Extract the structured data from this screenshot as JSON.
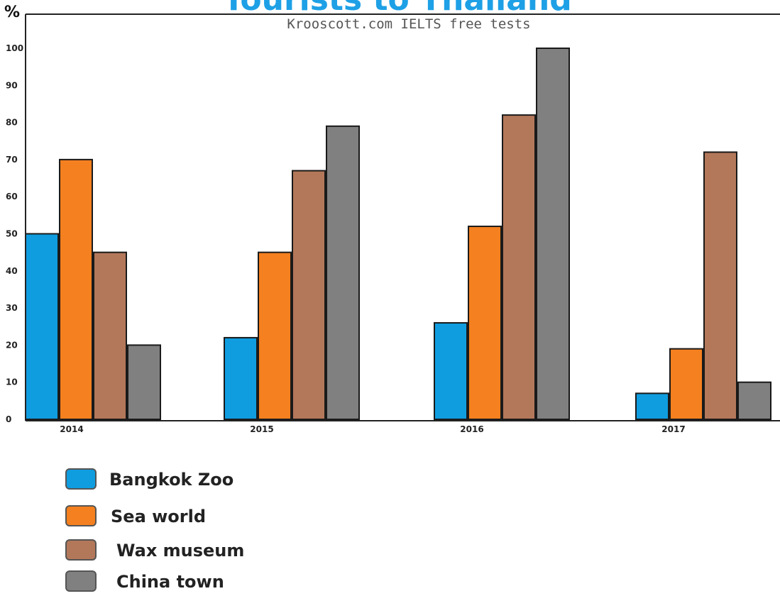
{
  "chart_data": {
    "type": "bar",
    "title": "Tourists to Thailand",
    "subtitle": "Krooscott.com IELTS free tests",
    "ylabel": "%",
    "ylim": [
      0,
      100
    ],
    "yticks": [
      "0",
      "10",
      "20",
      "30",
      "40",
      "50",
      "60",
      "70",
      "80",
      "90",
      "100"
    ],
    "categories": [
      "2014",
      "2015",
      "2016",
      "2017"
    ],
    "series": [
      {
        "name": "Bangkok Zoo",
        "color": "#0f9de0",
        "values": [
          50,
          22,
          26,
          7
        ]
      },
      {
        "name": "Sea world",
        "color": "#f5801f",
        "values": [
          70,
          45,
          52,
          19
        ]
      },
      {
        "name": "Wax museum",
        "color": "#b3785a",
        "values": [
          45,
          67,
          82,
          72
        ]
      },
      {
        "name": "China town",
        "color": "#808080",
        "values": [
          20,
          79,
          100,
          10
        ]
      }
    ],
    "title_color": "#1ea0e6",
    "grid": false,
    "legend_position": "bottom-left"
  }
}
